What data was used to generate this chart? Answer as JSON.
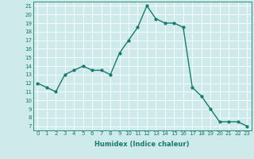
{
  "x": [
    0,
    1,
    2,
    3,
    4,
    5,
    6,
    7,
    8,
    9,
    10,
    11,
    12,
    13,
    14,
    15,
    16,
    17,
    18,
    19,
    20,
    21,
    22,
    23
  ],
  "y": [
    12,
    11.5,
    11,
    13,
    13.5,
    14,
    13.5,
    13.5,
    13,
    15.5,
    17,
    18.5,
    21,
    19.5,
    19,
    19,
    18.5,
    11.5,
    10.5,
    9,
    7.5,
    7.5,
    7.5,
    7
  ],
  "line_color": "#1a7a6e",
  "marker": "o",
  "marker_size": 2,
  "linewidth": 1.0,
  "xlabel": "Humidex (Indice chaleur)",
  "ylabel": "",
  "xlim": [
    -0.5,
    23.5
  ],
  "ylim": [
    6.5,
    21.5
  ],
  "yticks": [
    7,
    8,
    9,
    10,
    11,
    12,
    13,
    14,
    15,
    16,
    17,
    18,
    19,
    20,
    21
  ],
  "xticks": [
    0,
    1,
    2,
    3,
    4,
    5,
    6,
    7,
    8,
    9,
    10,
    11,
    12,
    13,
    14,
    15,
    16,
    17,
    18,
    19,
    20,
    21,
    22,
    23
  ],
  "bg_color": "#ceeaea",
  "grid_color": "#ffffff",
  "tick_color": "#1a7a6e",
  "label_color": "#1a7a6e",
  "axis_fontsize": 6,
  "tick_fontsize": 5
}
